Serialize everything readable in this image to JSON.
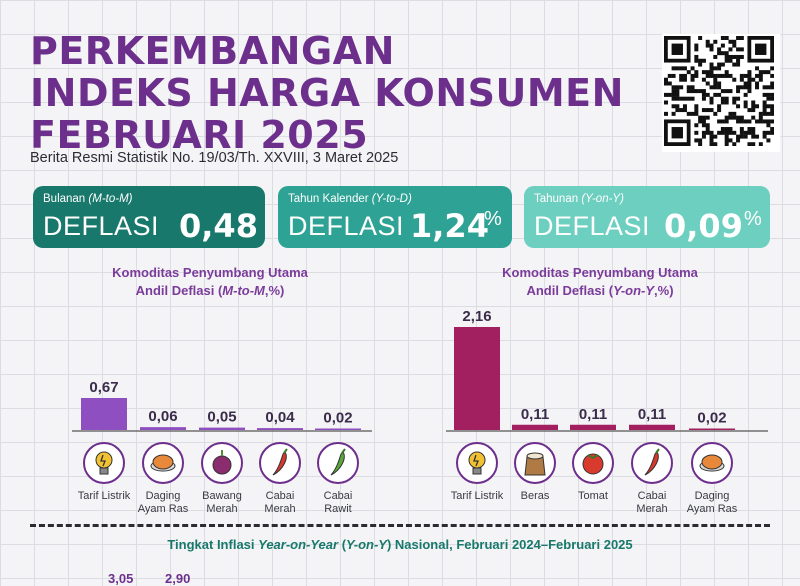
{
  "header": {
    "title_lines": [
      "PERKEMBANGAN",
      "INDEKS HARGA KONSUMEN",
      "FEBRUARI 2025"
    ],
    "subtitle": "Berita Resmi Statistik No. 19/03/Th. XXVIII, 3 Maret 2025"
  },
  "cards": [
    {
      "label": "Bulanan",
      "label_italic": "(M-to-M)",
      "word": "DEFLASI",
      "value": "0,48",
      "unit": "%",
      "color": "#17786b"
    },
    {
      "label": "Tahun Kalender",
      "label_italic": "(Y-to-D)",
      "word": "DEFLASI",
      "value": "1,24",
      "unit": "%",
      "color": "#2ea395"
    },
    {
      "label": "Tahunan",
      "label_italic": "(Y-on-Y)",
      "word": "DEFLASI",
      "value": "0,09",
      "unit": "%",
      "color": "#6ccfbf"
    }
  ],
  "chart_data": [
    {
      "type": "bar",
      "title_line1": "Komoditas Penyumbang Utama",
      "title_line2_prefix": "Andil Deflasi (",
      "title_line2_italic": "M-to-M",
      "title_line2_suffix": ",%)",
      "categories": [
        "Tarif Listrik",
        "Daging Ayam Ras",
        "Bawang Merah",
        "Cabai Merah",
        "Cabai Rawit"
      ],
      "category_lines": [
        [
          "Tarif Listrik"
        ],
        [
          "Daging",
          "Ayam Ras"
        ],
        [
          "Bawang",
          "Merah"
        ],
        [
          "Cabai",
          "Merah"
        ],
        [
          "Cabai",
          "Rawit"
        ]
      ],
      "icons": [
        "lightbulb-icon",
        "roast-chicken-icon",
        "onion-icon",
        "chili-icon",
        "green-chili-icon"
      ],
      "values": [
        0.67,
        0.06,
        0.05,
        0.04,
        0.02
      ],
      "value_labels": [
        "0,67",
        "0,06",
        "0,05",
        "0,04",
        "0,02"
      ],
      "bar_color": "#8e4fc1"
    },
    {
      "type": "bar",
      "title_line1": "Komoditas Penyumbang Utama",
      "title_line2_prefix": "Andil Deflasi (",
      "title_line2_italic": "Y-on-Y",
      "title_line2_suffix": ",%)",
      "categories": [
        "Tarif Listrik",
        "Beras",
        "Tomat",
        "Cabai Merah",
        "Daging Ayam Ras"
      ],
      "category_lines": [
        [
          "Tarif Listrik"
        ],
        [
          "Beras"
        ],
        [
          "Tomat"
        ],
        [
          "Cabai",
          "Merah"
        ],
        [
          "Daging",
          "Ayam Ras"
        ]
      ],
      "icons": [
        "lightbulb-icon",
        "rice-sack-icon",
        "tomato-icon",
        "chili-icon",
        "roast-chicken-icon"
      ],
      "values": [
        2.16,
        0.11,
        0.11,
        0.11,
        0.02
      ],
      "value_labels": [
        "2,16",
        "0,11",
        "0,11",
        "0,11",
        "0,02"
      ],
      "bar_color": "#a2205f"
    }
  ],
  "footer": {
    "prefix": "Tingkat Inflasi ",
    "italic": "Year-on-Year",
    "middle": " (",
    "italic2": "Y-on-Y",
    "suffix": ") Nasional, Februari 2024–Februari 2025",
    "peek_values": [
      "3,05",
      "2,90"
    ]
  }
}
